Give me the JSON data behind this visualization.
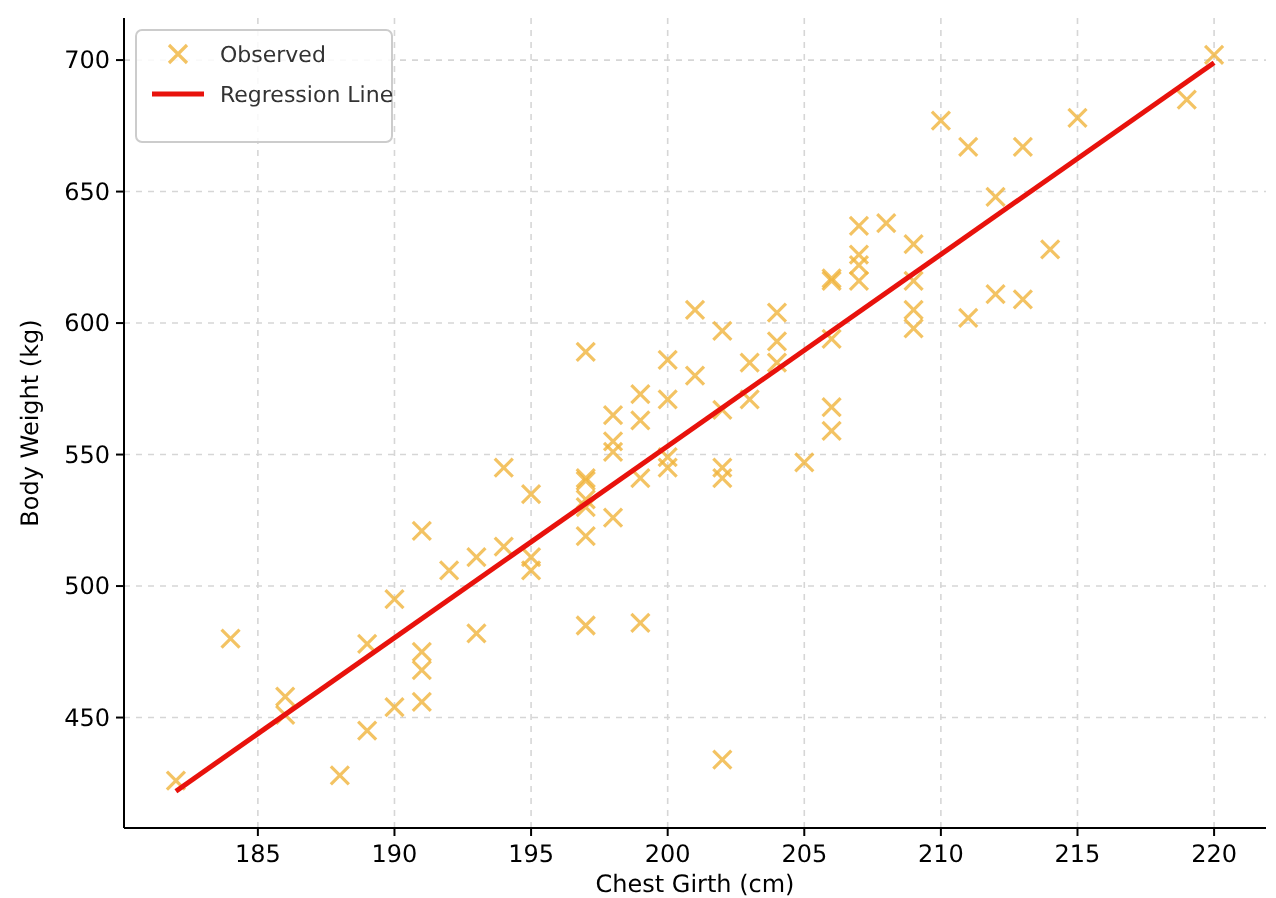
{
  "chart_data": {
    "type": "scatter",
    "xlabel": "Chest Girth (cm)",
    "ylabel": "Body Weight (kg)",
    "xlim": [
      180.1,
      221.9
    ],
    "ylim": [
      408,
      716
    ],
    "xticks": [
      185,
      190,
      195,
      200,
      205,
      210,
      215,
      220
    ],
    "yticks": [
      450,
      500,
      550,
      600,
      650,
      700
    ],
    "grid": true,
    "legend": "top left",
    "series": [
      {
        "name": "Observed",
        "color": "#f0b43c",
        "marker": "cross",
        "x": [
          182,
          184,
          186,
          186,
          188,
          189,
          189,
          190,
          190,
          191,
          191,
          191,
          191,
          192,
          193,
          193,
          194,
          194,
          195,
          195,
          195,
          197,
          197,
          197,
          197,
          197,
          197,
          197,
          198,
          198,
          198,
          198,
          199,
          199,
          199,
          199,
          200,
          200,
          200,
          200,
          201,
          201,
          202,
          202,
          202,
          202,
          202,
          203,
          203,
          204,
          204,
          204,
          205,
          206,
          206,
          206,
          206,
          206,
          207,
          207,
          207,
          207,
          208,
          209,
          209,
          209,
          209,
          210,
          211,
          211,
          212,
          212,
          213,
          213,
          214,
          215,
          219,
          220
        ],
        "values": [
          426,
          480,
          458,
          451,
          428,
          445,
          478,
          495,
          454,
          521,
          475,
          468,
          456,
          506,
          511,
          482,
          545,
          515,
          535,
          511,
          506,
          589,
          541,
          540,
          533,
          530,
          519,
          485,
          565,
          555,
          551,
          526,
          573,
          563,
          541,
          486,
          586,
          571,
          549,
          545,
          605,
          580,
          597,
          567,
          545,
          541,
          434,
          585,
          571,
          604,
          593,
          585,
          547,
          617,
          616,
          594,
          568,
          559,
          637,
          626,
          622,
          616,
          638,
          630,
          616,
          605,
          598,
          677,
          602,
          667,
          648,
          611,
          667,
          609,
          628,
          678,
          685,
          702
        ]
      },
      {
        "name": "Regression Line",
        "type": "line",
        "color": "#e8120c",
        "line_style": "solid",
        "x": [
          182,
          220
        ],
        "values": [
          422,
          699
        ]
      }
    ]
  }
}
